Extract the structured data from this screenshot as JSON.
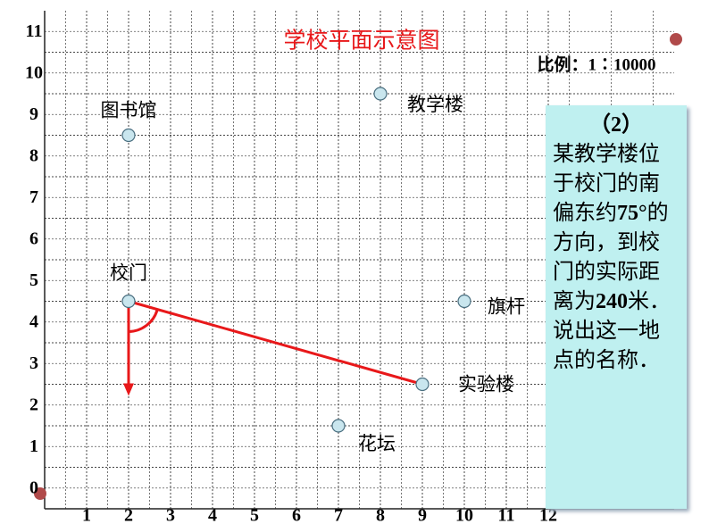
{
  "chart_data": {
    "type": "scatter",
    "title": "学校平面示意图",
    "scale_note": "比例：1∶10000",
    "categories": [
      "图书馆",
      "教学楼",
      "校门",
      "旗杆",
      "实验楼",
      "花坛"
    ],
    "x": [
      2,
      8,
      2,
      10,
      9,
      7
    ],
    "values": [
      9,
      10,
      5,
      5,
      3,
      2
    ],
    "color": "#c9e6ee",
    "line_color": "#e8181a",
    "connect": [
      2,
      4
    ],
    "xlim": [
      0,
      15
    ],
    "ylim": [
      0,
      12
    ],
    "xticks": [
      1,
      2,
      3,
      4,
      5,
      6,
      7,
      8,
      9,
      10,
      11,
      12
    ],
    "yticks": [
      0,
      1,
      2,
      3,
      4,
      5,
      6,
      7,
      8,
      9,
      10,
      11
    ],
    "grid": true
  },
  "question": {
    "number": "（2）",
    "segments": [
      "某教学楼位于校门的南偏东约",
      "75°",
      "的方向，到校门的实际距离为",
      "240",
      "米．说出这一地点的名称．"
    ]
  }
}
